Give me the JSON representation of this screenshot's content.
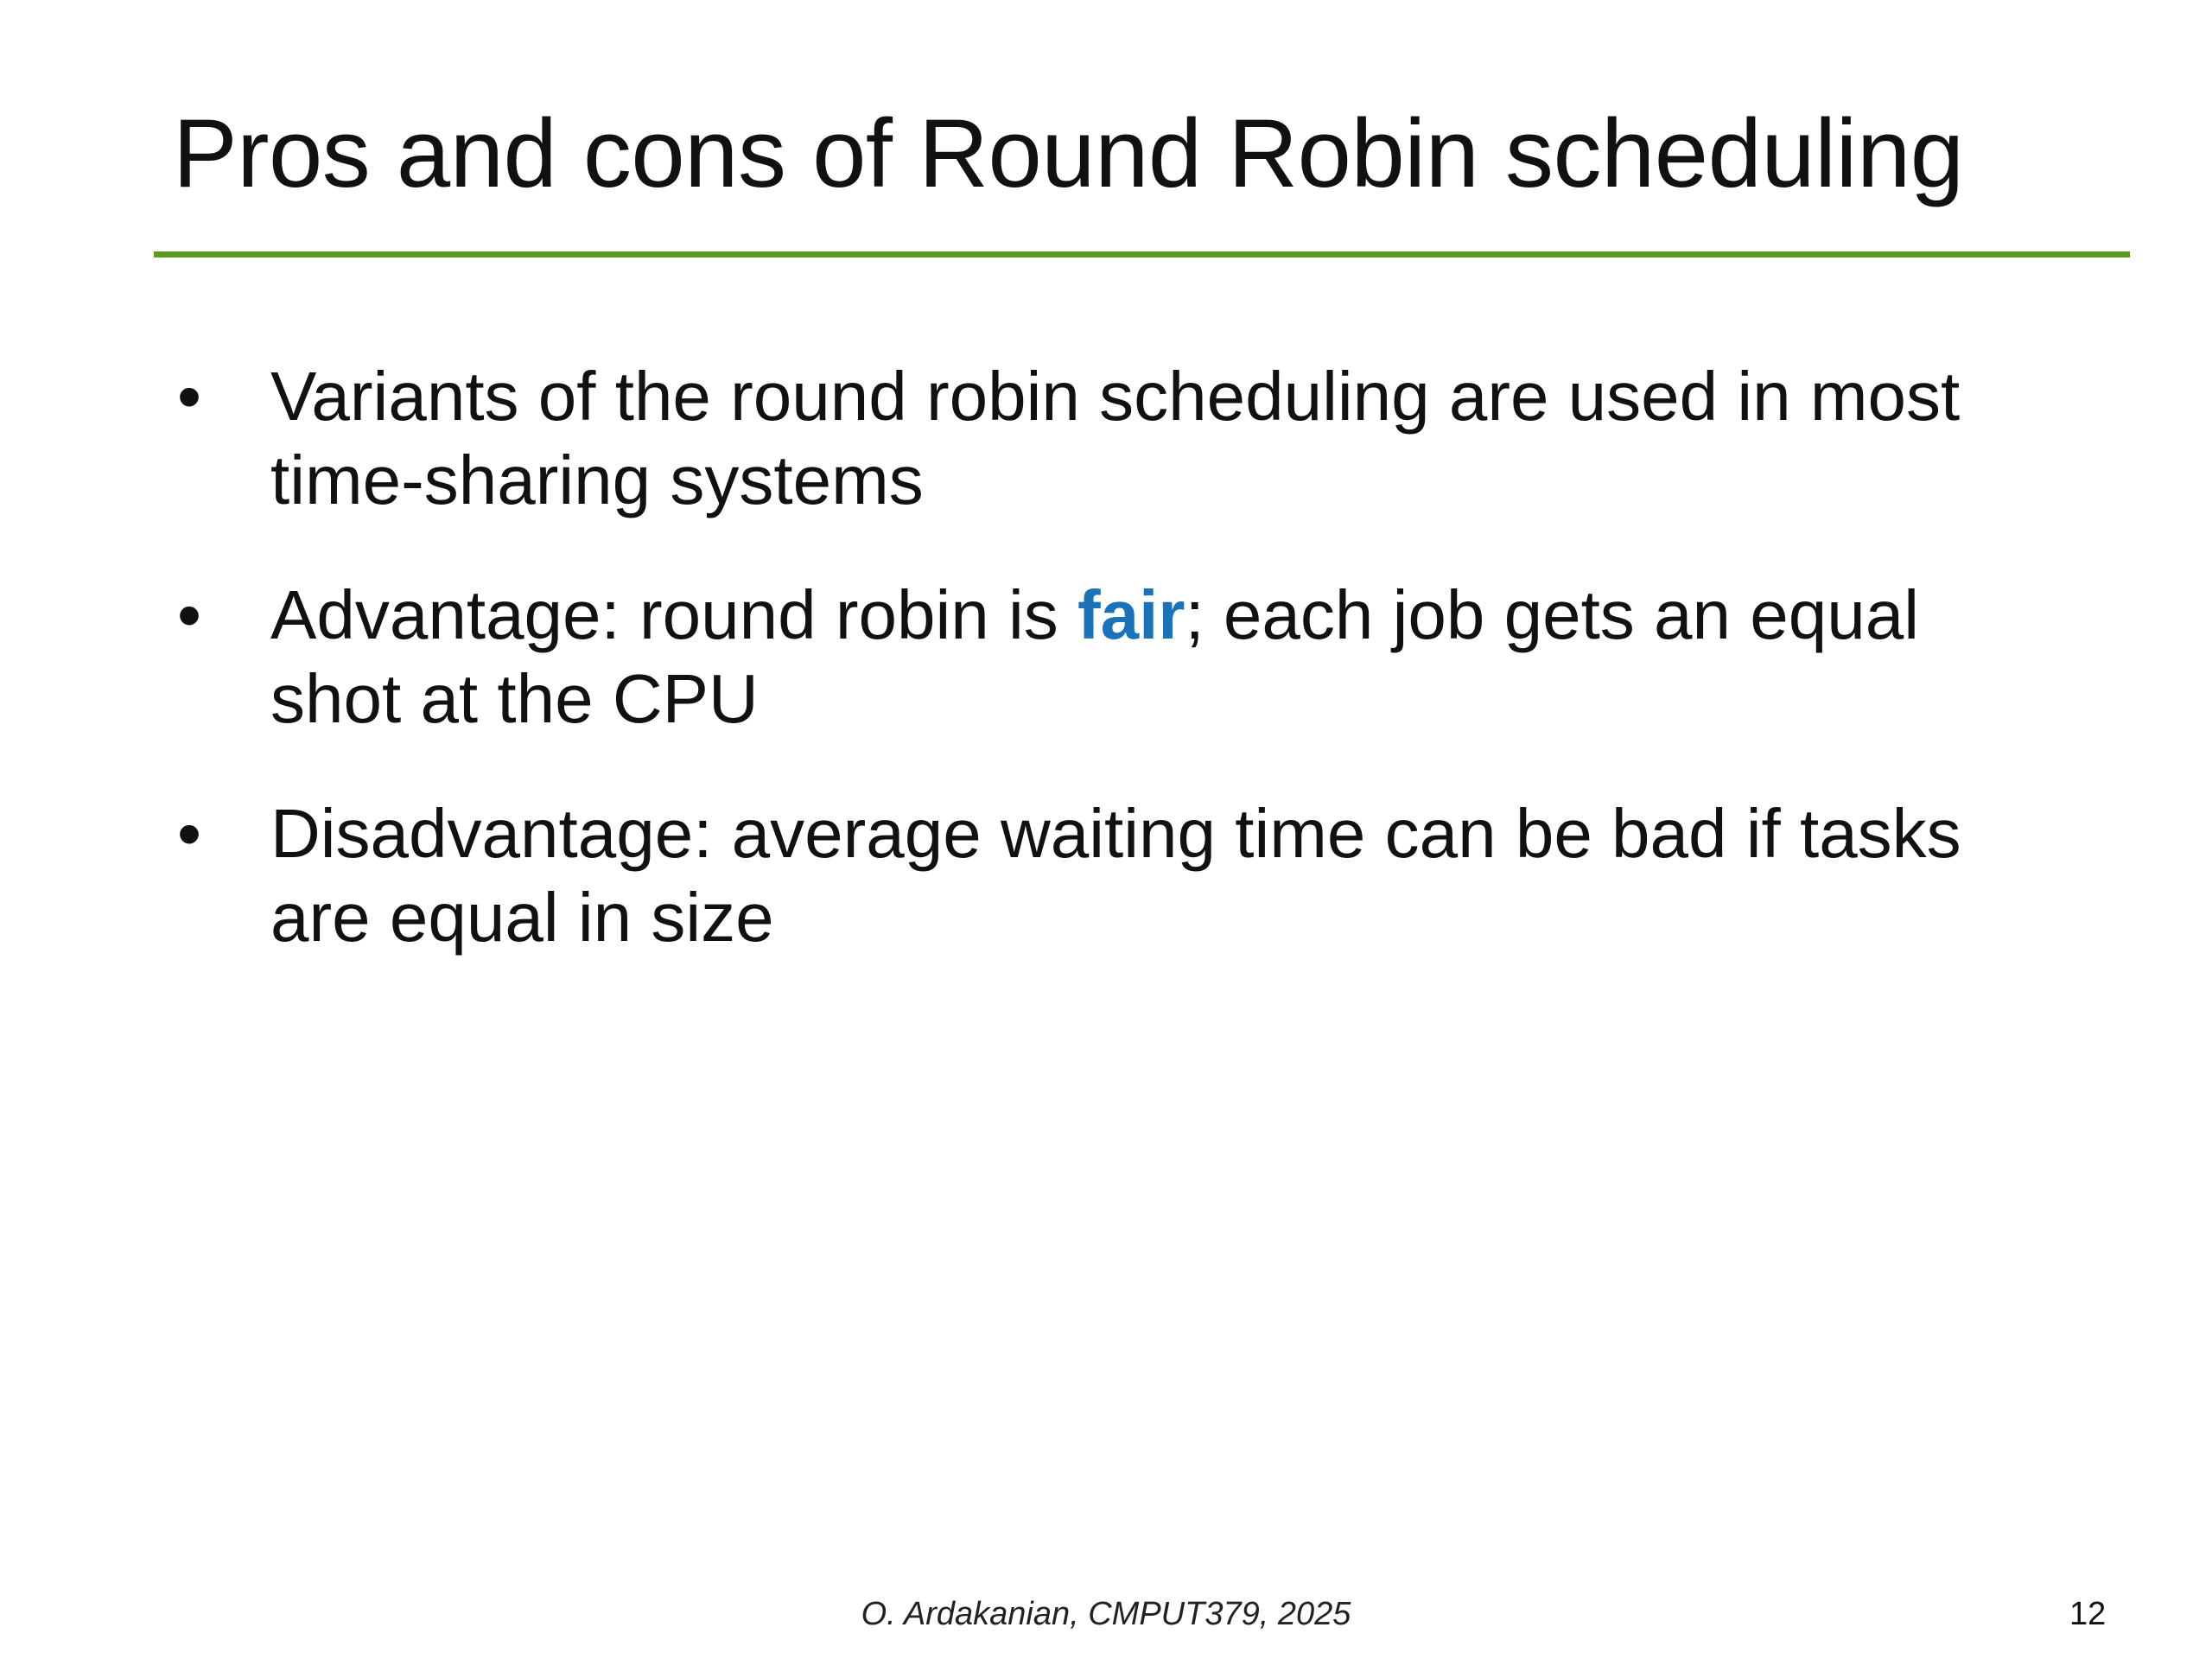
{
  "slide": {
    "title": "Pros and cons of Round Robin scheduling",
    "bullets": [
      {
        "text": "Variants of the round robin scheduling are used in most time-sharing systems"
      },
      {
        "before": "Advantage: round robin is ",
        "highlight": "fair",
        "after": "; each job gets an equal shot at the CPU"
      },
      {
        "text": "Disadvantage: average waiting time can be bad if tasks are equal in size"
      }
    ],
    "bullet_symbol": "•",
    "footer": "O. Ardakanian, CMPUT379, 2025",
    "page_number": "12"
  },
  "colors": {
    "rule": "#5a9a1a",
    "highlight": "#1a73b8",
    "text": "#111111",
    "background": "#ffffff"
  }
}
